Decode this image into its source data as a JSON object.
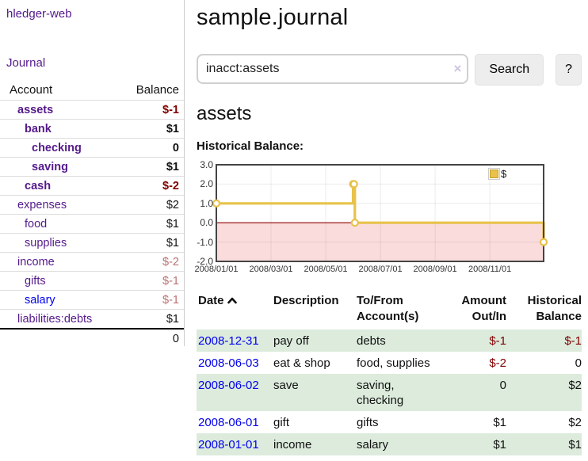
{
  "sidebar": {
    "app_title": "hledger-web",
    "nav": {
      "journal": "Journal"
    },
    "accounts_table": {
      "headers": {
        "account": "Account",
        "balance": "Balance"
      },
      "rows": [
        {
          "name": "assets",
          "indent": 1,
          "bold": true,
          "balance": "$-1",
          "neg": "strong",
          "link": "visited"
        },
        {
          "name": "bank",
          "indent": 2,
          "bold": true,
          "balance": "$1",
          "neg": "none",
          "link": "visited"
        },
        {
          "name": "checking",
          "indent": 3,
          "bold": true,
          "balance": "0",
          "neg": "none",
          "link": "visited"
        },
        {
          "name": "saving",
          "indent": 3,
          "bold": true,
          "balance": "$1",
          "neg": "none",
          "link": "visited"
        },
        {
          "name": "cash",
          "indent": 2,
          "bold": true,
          "balance": "$-2",
          "neg": "strong",
          "link": "visited"
        },
        {
          "name": "expenses",
          "indent": 1,
          "bold": false,
          "balance": "$2",
          "neg": "none",
          "link": "visited"
        },
        {
          "name": "food",
          "indent": 2,
          "bold": false,
          "balance": "$1",
          "neg": "none",
          "link": "visited"
        },
        {
          "name": "supplies",
          "indent": 2,
          "bold": false,
          "balance": "$1",
          "neg": "none",
          "link": "visited"
        },
        {
          "name": "income",
          "indent": 1,
          "bold": false,
          "balance": "$-2",
          "neg": "soft",
          "link": "visited"
        },
        {
          "name": "gifts",
          "indent": 2,
          "bold": false,
          "balance": "$-1",
          "neg": "soft",
          "link": "visited"
        },
        {
          "name": "salary",
          "indent": 2,
          "bold": false,
          "balance": "$-1",
          "neg": "soft",
          "link": "unvisited"
        },
        {
          "name": "liabilities:debts",
          "indent": 1,
          "bold": false,
          "balance": "$1",
          "neg": "none",
          "link": "visited"
        }
      ],
      "total": "0"
    }
  },
  "header": {
    "title": "sample.journal"
  },
  "search": {
    "value": "inacct:assets",
    "clear_icon": "×",
    "search_button": "Search",
    "help_button": "?"
  },
  "account_page": {
    "heading": "assets"
  },
  "chart_data": {
    "type": "line",
    "style": "step-after",
    "title": "Historical Balance:",
    "x_range": [
      "2008-01-01",
      "2008-12-31"
    ],
    "ylim": [
      -2,
      3
    ],
    "ytick_labels": [
      "3.0",
      "2.0",
      "1.0",
      "0.0",
      "-1.0",
      "-2.0"
    ],
    "ytick_values": [
      3,
      2,
      1,
      0,
      -1,
      -2
    ],
    "xtick_labels": [
      "2008/01/01",
      "2008/03/01",
      "2008/05/01",
      "2008/07/01",
      "2008/09/01",
      "2008/11/01"
    ],
    "grid": true,
    "legend": {
      "label": "$",
      "position": "top-right"
    },
    "series": [
      {
        "name": "$",
        "color": "#e8c24a",
        "marker": "open-circle",
        "points": [
          {
            "date": "2008-01-01",
            "value": 1
          },
          {
            "date": "2008-06-01",
            "value": 2
          },
          {
            "date": "2008-06-02",
            "value": 2
          },
          {
            "date": "2008-06-03",
            "value": 0
          },
          {
            "date": "2008-12-31",
            "value": -1
          }
        ]
      }
    ],
    "colors": {
      "negative_region": "#fbdcdc",
      "zero_line": "#8b0000",
      "plot_border": "#444444",
      "gridline": "rgba(0,0,0,0.08)"
    }
  },
  "register": {
    "headers": [
      {
        "label": "Date",
        "sort": "asc",
        "align": "left"
      },
      {
        "label": "Description",
        "align": "left"
      },
      {
        "label": "To/From Account(s)",
        "align": "left"
      },
      {
        "label": "Amount Out/In",
        "align": "right"
      },
      {
        "label": "Historical Balance",
        "align": "right"
      }
    ],
    "rows": [
      {
        "date": "2008-12-31",
        "description": "pay off",
        "accounts": "debts",
        "amount": "$-1",
        "amount_neg": true,
        "balance": "$-1",
        "balance_neg": true,
        "shaded": true
      },
      {
        "date": "2008-06-03",
        "description": "eat & shop",
        "accounts": "food, supplies",
        "amount": "$-2",
        "amount_neg": true,
        "balance": "0",
        "balance_neg": false,
        "shaded": false
      },
      {
        "date": "2008-06-02",
        "description": "save",
        "accounts": "saving, checking",
        "amount": "0",
        "amount_neg": false,
        "balance": "$2",
        "balance_neg": false,
        "shaded": true
      },
      {
        "date": "2008-06-01",
        "description": "gift",
        "accounts": "gifts",
        "amount": "$1",
        "amount_neg": false,
        "balance": "$2",
        "balance_neg": false,
        "shaded": false
      },
      {
        "date": "2008-01-01",
        "description": "income",
        "accounts": "salary",
        "amount": "$1",
        "amount_neg": false,
        "balance": "$1",
        "balance_neg": false,
        "shaded": true
      }
    ]
  }
}
